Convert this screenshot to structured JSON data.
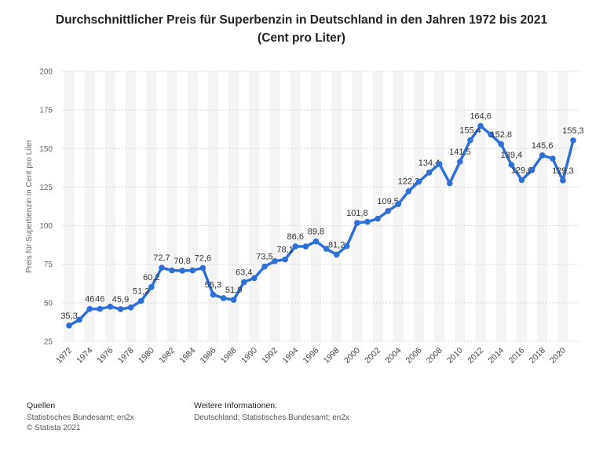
{
  "title_line1": "Durchschnittlicher Preis für Superbenzin in Deutschland in den Jahren 1972 bis 2021",
  "title_line2": "(Cent pro Liter)",
  "footer": {
    "sources_heading": "Quellen",
    "sources_text": "Statistisches Bundesamt; en2x",
    "copyright": "© Statista 2021",
    "info_heading": "Weitere Informationen:",
    "info_text": "Deutschland; Statistisches Bundesamt; en2x"
  },
  "chart_data": {
    "type": "line",
    "title": "Durchschnittlicher Preis für Superbenzin in Deutschland in den Jahren 1972 bis 2021 (Cent pro Liter)",
    "xlabel": "",
    "ylabel": "Preis für Superbenzin in Cent pro Liter",
    "ylim": [
      25,
      200
    ],
    "yticks": [
      25,
      50,
      75,
      100,
      125,
      150,
      175,
      200
    ],
    "xticks": [
      "1972",
      "1974",
      "1976",
      "1978",
      "1980",
      "1982",
      "1984",
      "1986",
      "1988",
      "1990",
      "1992",
      "1994",
      "1996",
      "1998",
      "2000",
      "2002",
      "2004",
      "2006",
      "2008",
      "2010",
      "2012",
      "2014",
      "2016",
      "2018",
      "2020"
    ],
    "grid": true,
    "line_color": "#2f6fd6",
    "series": [
      {
        "x": [
          1972,
          1973,
          1974,
          1975,
          1976,
          1977,
          1978,
          1979,
          1980,
          1981,
          1982,
          1983,
          1984,
          1985,
          1986,
          1987,
          1988,
          1989,
          1990,
          1991,
          1992,
          1993,
          1994,
          1995,
          1996,
          1997,
          1998,
          1999,
          2000,
          2001,
          2002,
          2003,
          2004,
          2005,
          2006,
          2007,
          2008,
          2009,
          2010,
          2011,
          2012,
          2013,
          2014,
          2015,
          2016,
          2017,
          2018,
          2019,
          2020,
          2021
        ],
        "values": [
          35.3,
          39.0,
          46,
          46,
          47.5,
          45.9,
          47.0,
          51.2,
          60.2,
          72.7,
          71.0,
          70.8,
          71.0,
          72.6,
          55.3,
          53.0,
          51.9,
          63.4,
          66.0,
          73.5,
          77.0,
          78.1,
          86.6,
          86.5,
          89.8,
          85.0,
          81.2,
          86.8,
          101.8,
          102.5,
          104.5,
          109.5,
          114.0,
          122.3,
          128.5,
          134.4,
          140.0,
          127.5,
          141.5,
          155.4,
          164.6,
          159.0,
          152.8,
          139.4,
          129.6,
          136.0,
          145.6,
          143.5,
          129.3,
          155.3
        ],
        "labels": [
          "35,3",
          "",
          "46",
          "46",
          "",
          "45,9",
          "",
          "51,2",
          "60,2",
          "72,7",
          "",
          "70,8",
          "",
          "72,6",
          "55,3",
          "",
          "51,9",
          "63,4",
          "",
          "73,5",
          "",
          "78,1",
          "86,6",
          "",
          "89,8",
          "",
          "81,2",
          "",
          "101,8",
          "",
          "",
          "109,5",
          "",
          "122,3",
          "",
          "134,4",
          "",
          "",
          "141,5",
          "155,4",
          "164,6",
          "",
          "152,8",
          "139,4",
          "129,6",
          "",
          "145,6",
          "",
          "129,3",
          "155,3"
        ]
      }
    ]
  }
}
